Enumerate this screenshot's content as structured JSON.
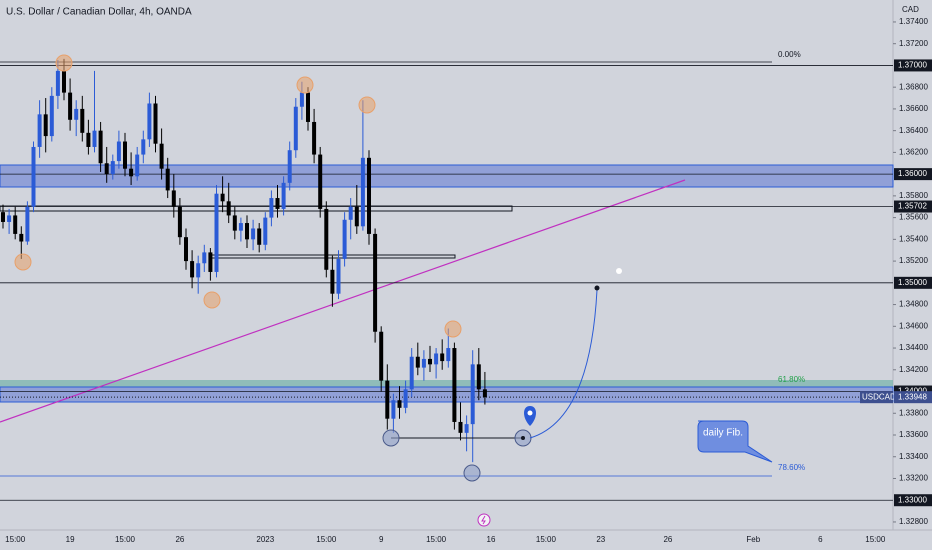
{
  "chart_data": {
    "type": "candlestick",
    "title": "U.S. Dollar / Canadian Dollar, 4h, OANDA",
    "currency": "CAD",
    "symbol": "USDCAD",
    "up_color": "#2b5bd6",
    "down_color": "#000000",
    "ylim": [
      1.32726,
      1.37602
    ],
    "yticks": [
      {
        "value": 1.374,
        "label": "1.37400"
      },
      {
        "value": 1.372,
        "label": "1.37200"
      },
      {
        "value": 1.368,
        "label": "1.36800"
      },
      {
        "value": 1.366,
        "label": "1.36600"
      },
      {
        "value": 1.364,
        "label": "1.36400"
      },
      {
        "value": 1.362,
        "label": "1.36200"
      },
      {
        "value": 1.358,
        "label": "1.35800"
      },
      {
        "value": 1.356,
        "label": "1.35600"
      },
      {
        "value": 1.354,
        "label": "1.35400"
      },
      {
        "value": 1.352,
        "label": "1.35200"
      },
      {
        "value": 1.348,
        "label": "1.34800"
      },
      {
        "value": 1.346,
        "label": "1.34600"
      },
      {
        "value": 1.344,
        "label": "1.34400"
      },
      {
        "value": 1.342,
        "label": "1.34200"
      },
      {
        "value": 1.338,
        "label": "1.33800"
      },
      {
        "value": 1.336,
        "label": "1.33600"
      },
      {
        "value": 1.334,
        "label": "1.33400"
      },
      {
        "value": 1.332,
        "label": "1.33200"
      },
      {
        "value": 1.328,
        "label": "1.32800"
      }
    ],
    "levels": [
      {
        "value": 1.37,
        "label": "1.37000"
      },
      {
        "value": 1.36,
        "label": "1.36000"
      },
      {
        "value": 1.35702,
        "label": "1.35702"
      },
      {
        "value": 1.35,
        "label": "1.35000"
      },
      {
        "value": 1.34,
        "label": "1.34000"
      },
      {
        "value": 1.33,
        "label": "1.33000"
      }
    ],
    "last_price": {
      "value": 1.33948,
      "label": "1.33948"
    },
    "annotations": [
      "0.00%",
      "61.80%",
      "78.60%",
      "daily Fib."
    ],
    "categories": [
      null,
      null,
      "15:00",
      null,
      null,
      null,
      null,
      null,
      null,
      null,
      null,
      "19",
      null,
      null,
      null,
      null,
      null,
      null,
      null,
      null,
      "15:00",
      null,
      null,
      null,
      null,
      null,
      null,
      null,
      null,
      "26",
      null,
      null,
      null,
      null,
      null,
      null,
      null,
      null,
      null,
      null,
      null,
      null,
      null,
      "2023",
      null,
      null,
      null,
      null,
      null,
      null,
      null,
      null,
      null,
      "15:00",
      null,
      null,
      null,
      null,
      null,
      null,
      null,
      null,
      "9",
      null,
      null,
      null,
      null,
      null,
      null,
      null,
      null,
      "15:00",
      null,
      null,
      null,
      null,
      null,
      null,
      null,
      null,
      "16",
      null,
      null,
      null,
      null,
      null,
      null,
      null,
      null,
      "15:00",
      null,
      null,
      null,
      null,
      null,
      null,
      null,
      null,
      "23",
      null,
      null,
      null,
      null,
      null,
      null,
      null,
      null,
      null,
      null,
      "26",
      null,
      null,
      null,
      null,
      null,
      null,
      null,
      null,
      null,
      null,
      null,
      null,
      null,
      "Feb",
      null,
      null,
      null,
      null,
      null,
      null,
      null,
      null,
      null,
      null,
      "6",
      null,
      null,
      null,
      null,
      null,
      null,
      null,
      null,
      "15:00",
      null,
      null
    ],
    "open": [
      1.3565,
      1.3556,
      1.3562,
      1.3545,
      1.3538,
      1.357,
      1.3625,
      1.3655,
      1.3635,
      1.3672,
      1.3695,
      1.3675,
      1.365,
      1.366,
      1.3638,
      1.3625,
      1.364,
      1.361,
      1.36,
      1.3612,
      1.363,
      1.3605,
      1.3598,
      1.3618,
      1.3632,
      1.3665,
      1.3628,
      1.3605,
      1.3585,
      1.357,
      1.3542,
      1.352,
      1.3505,
      1.3518,
      1.3528,
      1.351,
      1.3582,
      1.3575,
      1.3562,
      1.3548,
      1.3555,
      1.354,
      1.355,
      1.3535,
      1.356,
      1.3578,
      1.3568,
      1.3592,
      1.3622,
      1.3662,
      1.3675,
      1.3648,
      1.3618,
      1.3568,
      1.3512,
      1.349,
      1.3522,
      1.3558,
      1.357,
      1.3552,
      1.3615,
      1.3545,
      1.3455,
      1.341,
      1.3375,
      1.3392,
      1.3385,
      1.3402,
      1.3432,
      1.3422,
      1.343,
      1.3425,
      1.3435,
      1.3428,
      1.344,
      1.3372,
      1.3362,
      1.337,
      1.3425,
      1.3402,
      null,
      null,
      null,
      null,
      null,
      null,
      null,
      null,
      null,
      null,
      null,
      null,
      null,
      null,
      null,
      null,
      null,
      null,
      null,
      null,
      null,
      null,
      null,
      null,
      null,
      null,
      null,
      null,
      null,
      null,
      null,
      null,
      null,
      null,
      null,
      null,
      null,
      null,
      null,
      null,
      null,
      null,
      null,
      null,
      null,
      null,
      null,
      null,
      null,
      null,
      null,
      null,
      null,
      null,
      null,
      null,
      null,
      null,
      null,
      null,
      null,
      null,
      null,
      null,
      null,
      null
    ],
    "high": [
      1.3572,
      1.3568,
      1.357,
      1.3552,
      1.3575,
      1.363,
      1.3668,
      1.367,
      1.368,
      1.3705,
      1.3706,
      1.3688,
      1.3668,
      1.3672,
      1.365,
      1.3695,
      1.3648,
      1.3625,
      1.3618,
      1.364,
      1.3638,
      1.362,
      1.3625,
      1.364,
      1.3675,
      1.3672,
      1.3642,
      1.3615,
      1.36,
      1.3578,
      1.355,
      1.353,
      1.3525,
      1.3535,
      1.3532,
      1.359,
      1.3598,
      1.3592,
      1.357,
      1.356,
      1.3562,
      1.3558,
      1.3555,
      1.3565,
      1.3585,
      1.359,
      1.3598,
      1.363,
      1.367,
      1.3685,
      1.368,
      1.366,
      1.3625,
      1.3575,
      1.3525,
      1.353,
      1.3565,
      1.3578,
      1.359,
      1.3668,
      1.3622,
      1.355,
      1.346,
      1.3425,
      1.3398,
      1.3405,
      1.341,
      1.344,
      1.3445,
      1.3438,
      1.3442,
      1.344,
      1.3448,
      1.3458,
      1.3445,
      1.339,
      1.3378,
      1.3438,
      1.344,
      1.3418,
      null,
      null,
      null,
      null,
      null,
      null,
      null,
      null,
      null,
      null,
      null,
      null,
      null,
      null,
      null,
      null,
      null,
      null,
      null,
      null,
      null,
      null,
      null,
      null,
      null,
      null,
      null,
      null,
      null,
      null,
      null,
      null,
      null,
      null,
      null,
      null,
      null,
      null,
      null,
      null,
      null,
      null,
      null,
      null,
      null,
      null,
      null,
      null,
      null,
      null,
      null,
      null,
      null,
      null,
      null,
      null,
      null,
      null,
      null,
      null,
      null,
      null,
      null,
      null,
      null,
      null
    ],
    "low": [
      1.355,
      1.3545,
      1.354,
      1.3522,
      1.3535,
      1.3565,
      1.3615,
      1.362,
      1.363,
      1.366,
      1.3668,
      1.364,
      1.3635,
      1.363,
      1.3618,
      1.362,
      1.3602,
      1.3592,
      1.3595,
      1.3605,
      1.3598,
      1.359,
      1.3594,
      1.361,
      1.3625,
      1.362,
      1.3595,
      1.3578,
      1.356,
      1.3535,
      1.3512,
      1.3495,
      1.349,
      1.351,
      1.3502,
      1.3505,
      1.3565,
      1.3555,
      1.354,
      1.3538,
      1.3532,
      1.353,
      1.3528,
      1.353,
      1.3552,
      1.356,
      1.3562,
      1.3585,
      1.3615,
      1.365,
      1.364,
      1.361,
      1.356,
      1.3505,
      1.3478,
      1.3485,
      1.3515,
      1.354,
      1.3545,
      1.3548,
      1.3535,
      1.3445,
      1.34,
      1.3365,
      1.3362,
      1.3375,
      1.338,
      1.3395,
      1.3415,
      1.341,
      1.3418,
      1.3412,
      1.342,
      1.3422,
      1.3365,
      1.3355,
      1.3345,
      1.3335,
      1.3392,
      1.3388,
      null,
      null,
      null,
      null,
      null,
      null,
      null,
      null,
      null,
      null,
      null,
      null,
      null,
      null,
      null,
      null,
      null,
      null,
      null,
      null,
      null,
      null,
      null,
      null,
      null,
      null,
      null,
      null,
      null,
      null,
      null,
      null,
      null,
      null,
      null,
      null,
      null,
      null,
      null,
      null,
      null,
      null,
      null,
      null,
      null,
      null,
      null,
      null,
      null,
      null,
      null,
      null,
      null,
      null,
      null,
      null,
      null,
      null,
      null,
      null,
      null,
      null,
      null,
      null,
      null,
      null
    ],
    "close": [
      1.3556,
      1.3562,
      1.3545,
      1.3538,
      1.357,
      1.3625,
      1.3655,
      1.3635,
      1.3672,
      1.3695,
      1.3675,
      1.365,
      1.366,
      1.3638,
      1.3625,
      1.364,
      1.361,
      1.36,
      1.3612,
      1.363,
      1.3605,
      1.3598,
      1.3618,
      1.3632,
      1.3665,
      1.3628,
      1.3605,
      1.3585,
      1.357,
      1.3542,
      1.352,
      1.3505,
      1.3518,
      1.3528,
      1.351,
      1.3582,
      1.3575,
      1.3562,
      1.3548,
      1.3555,
      1.354,
      1.355,
      1.3535,
      1.356,
      1.3578,
      1.3568,
      1.3592,
      1.3622,
      1.3662,
      1.3675,
      1.3648,
      1.3618,
      1.3568,
      1.3512,
      1.349,
      1.3522,
      1.3558,
      1.357,
      1.3552,
      1.3615,
      1.3545,
      1.3455,
      1.341,
      1.3375,
      1.3392,
      1.3385,
      1.3402,
      1.3432,
      1.3422,
      1.343,
      1.3425,
      1.3435,
      1.3428,
      1.344,
      1.3372,
      1.3362,
      1.337,
      1.3425,
      1.3402,
      1.33948,
      null,
      null,
      null,
      null,
      null,
      null,
      null,
      null,
      null,
      null,
      null,
      null,
      null,
      null,
      null,
      null,
      null,
      null,
      null,
      null,
      null,
      null,
      null,
      null,
      null,
      null,
      null,
      null,
      null,
      null,
      null,
      null,
      null,
      null,
      null,
      null,
      null,
      null,
      null,
      null,
      null,
      null,
      null,
      null,
      null,
      null,
      null,
      null,
      null,
      null,
      null,
      null,
      null,
      null,
      null,
      null,
      null,
      null,
      null,
      null,
      null,
      null,
      null,
      null,
      null,
      null
    ]
  }
}
